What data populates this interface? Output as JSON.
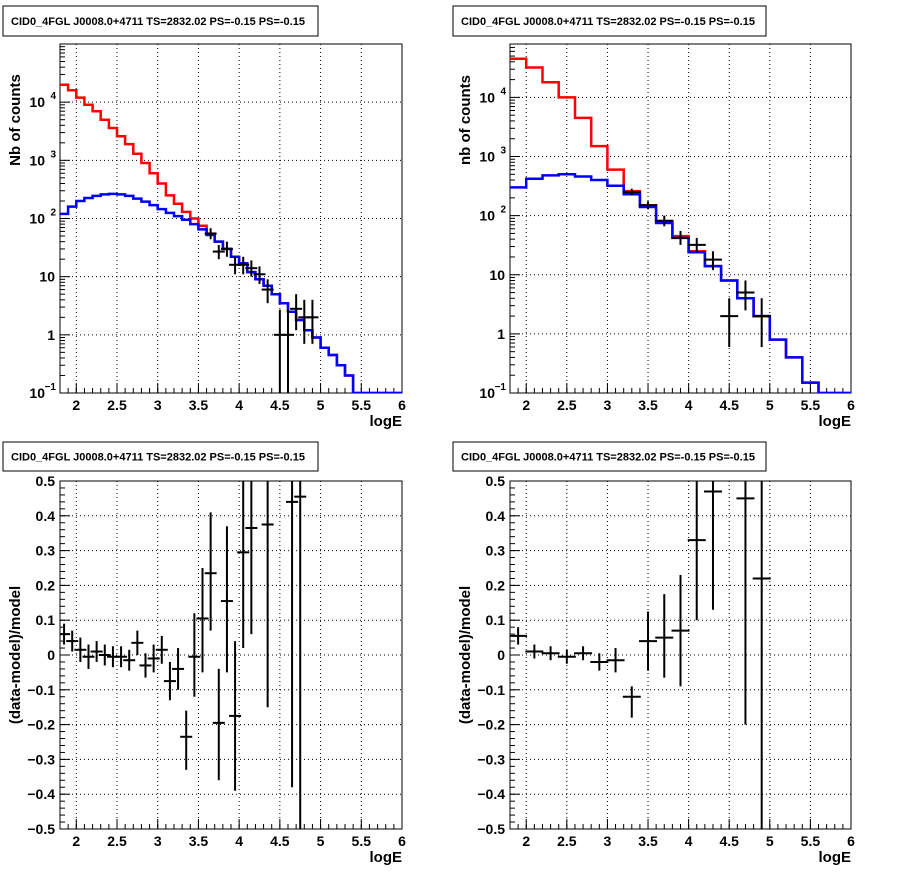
{
  "colors": {
    "model_total": "#ff0000",
    "model_component": "#0000ff",
    "data": "#000000",
    "grid": "#000000"
  },
  "chart_data": [
    {
      "type": "line",
      "title": "CID0_4FGL J0008.0+4711 TS=2832.02 PS=-0.15 PS=-0.15",
      "xlabel": "logE",
      "ylabel": "Nb of counts",
      "xlim": [
        1.8,
        6.0
      ],
      "ylim": [
        0.1,
        100000
      ],
      "yscale": "log",
      "grid": true,
      "x_ticks": [
        "2",
        "2.5",
        "3",
        "3.5",
        "4",
        "4.5",
        "5",
        "5.5",
        "6"
      ],
      "y_ticks": [
        {
          "value": 0.1,
          "label": "10",
          "sup": "−1"
        },
        {
          "value": 1,
          "label": "1",
          "sup": ""
        },
        {
          "value": 10,
          "label": "10",
          "sup": ""
        },
        {
          "value": 100,
          "label": "10",
          "sup": "2"
        },
        {
          "value": 1000,
          "label": "10",
          "sup": "3"
        },
        {
          "value": 10000,
          "label": "10",
          "sup": "4"
        }
      ],
      "bin_edges": [
        1.8,
        1.9,
        2.0,
        2.1,
        2.2,
        2.3,
        2.4,
        2.5,
        2.6,
        2.7,
        2.8,
        2.9,
        3.0,
        3.1,
        3.2,
        3.3,
        3.4,
        3.5,
        3.6,
        3.7,
        3.8,
        3.9,
        4.0,
        4.1,
        4.2,
        4.3,
        4.4,
        4.5,
        4.6,
        4.7,
        4.8,
        4.9,
        5.0,
        5.1,
        5.2,
        5.3,
        5.4,
        5.5,
        5.6,
        5.7,
        5.8,
        5.9,
        6.0
      ],
      "series": [
        {
          "name": "",
          "kind": "step",
          "color": "#ff0000",
          "values": [
            20000,
            16000,
            12000,
            9000,
            7000,
            5000,
            3600,
            2600,
            1900,
            1300,
            900,
            600,
            400,
            250,
            180,
            130,
            100,
            75,
            55,
            40,
            30,
            22,
            17,
            12,
            9,
            7,
            5,
            3.5,
            2.5,
            1.8,
            1.2,
            0.9,
            0.6,
            0.45,
            0.3,
            0.2,
            0.1,
            0.1,
            0.1,
            0.1,
            0.1,
            0.1
          ]
        },
        {
          "name": "",
          "kind": "step",
          "color": "#0000ff",
          "values": [
            120,
            160,
            200,
            225,
            245,
            260,
            265,
            260,
            245,
            220,
            195,
            170,
            145,
            125,
            110,
            95,
            80,
            65,
            52,
            40,
            30,
            22,
            17,
            12,
            9,
            7,
            5,
            3.5,
            2.5,
            1.8,
            1.2,
            0.9,
            0.6,
            0.45,
            0.3,
            0.2,
            0.1,
            0.1,
            0.1,
            0.1,
            0.1,
            0.1
          ]
        },
        {
          "name": "",
          "kind": "points",
          "color": "#000000",
          "points": [
            {
              "x": 3.65,
              "y": 55,
              "lo": 44,
              "hi": 68
            },
            {
              "x": 3.75,
              "y": 27,
              "lo": 20,
              "hi": 35
            },
            {
              "x": 3.85,
              "y": 30,
              "lo": 22,
              "hi": 40
            },
            {
              "x": 3.95,
              "y": 16,
              "lo": 11,
              "hi": 22
            },
            {
              "x": 4.05,
              "y": 16,
              "lo": 11,
              "hi": 22
            },
            {
              "x": 4.15,
              "y": 14,
              "lo": 10,
              "hi": 19
            },
            {
              "x": 4.25,
              "y": 11,
              "lo": 7.5,
              "hi": 15
            },
            {
              "x": 4.35,
              "y": 6,
              "lo": 3.5,
              "hi": 9
            },
            {
              "x": 4.5,
              "y": 1,
              "lo": 0.1,
              "hi": 2.7
            },
            {
              "x": 4.6,
              "y": 1,
              "lo": 0.1,
              "hi": 2.7
            },
            {
              "x": 4.7,
              "y": 2.8,
              "lo": 1.2,
              "hi": 5
            },
            {
              "x": 4.8,
              "y": 2,
              "lo": 0.7,
              "hi": 4
            },
            {
              "x": 4.9,
              "y": 2,
              "lo": 0.7,
              "hi": 4
            }
          ]
        }
      ]
    },
    {
      "type": "line",
      "title": "CID0_4FGL J0008.0+4711 TS=2832.02 PS=-0.15 PS=-0.15",
      "xlabel": "logE",
      "ylabel": "nb of counts",
      "xlim": [
        1.8,
        6.0
      ],
      "ylim": [
        0.1,
        80000
      ],
      "yscale": "log",
      "grid": true,
      "x_ticks": [
        "2",
        "2.5",
        "3",
        "3.5",
        "4",
        "4.5",
        "5",
        "5.5",
        "6"
      ],
      "y_ticks": [
        {
          "value": 0.1,
          "label": "10",
          "sup": "−1"
        },
        {
          "value": 1,
          "label": "1",
          "sup": ""
        },
        {
          "value": 10,
          "label": "10",
          "sup": ""
        },
        {
          "value": 100,
          "label": "10",
          "sup": "2"
        },
        {
          "value": 1000,
          "label": "10",
          "sup": "3"
        },
        {
          "value": 10000,
          "label": "10",
          "sup": "4"
        }
      ],
      "bin_edges": [
        1.8,
        2.0,
        2.2,
        2.4,
        2.6,
        2.8,
        3.0,
        3.2,
        3.4,
        3.6,
        3.8,
        4.0,
        4.2,
        4.4,
        4.6,
        4.8,
        5.0,
        5.2,
        5.4,
        5.6,
        5.8,
        6.0
      ],
      "series": [
        {
          "name": "",
          "kind": "step",
          "color": "#ff0000",
          "values": [
            45000,
            32000,
            18000,
            10000,
            4500,
            1500,
            600,
            260,
            150,
            80,
            45,
            25,
            14,
            8,
            4,
            2,
            0.8,
            0.4,
            0.15,
            0.1,
            0.1
          ]
        },
        {
          "name": "",
          "kind": "step",
          "color": "#0000ff",
          "values": [
            300,
            420,
            480,
            500,
            460,
            400,
            320,
            230,
            140,
            75,
            42,
            24,
            14,
            8,
            4,
            2,
            0.8,
            0.4,
            0.15,
            0.1,
            0.1
          ]
        },
        {
          "name": "",
          "kind": "points",
          "color": "#000000",
          "points": [
            {
              "x": 3.3,
              "y": 250,
              "lo": 220,
              "hi": 285
            },
            {
              "x": 3.5,
              "y": 150,
              "lo": 128,
              "hi": 175
            },
            {
              "x": 3.7,
              "y": 82,
              "lo": 66,
              "hi": 100
            },
            {
              "x": 3.9,
              "y": 42,
              "lo": 32,
              "hi": 55
            },
            {
              "x": 4.1,
              "y": 32,
              "lo": 24,
              "hi": 42
            },
            {
              "x": 4.3,
              "y": 18,
              "lo": 12,
              "hi": 25
            },
            {
              "x": 4.5,
              "y": 2,
              "lo": 0.6,
              "hi": 4
            },
            {
              "x": 4.7,
              "y": 5,
              "lo": 2.5,
              "hi": 8
            },
            {
              "x": 4.9,
              "y": 2,
              "lo": 0.6,
              "hi": 4
            }
          ]
        }
      ]
    },
    {
      "type": "scatter",
      "title": "CID0_4FGL J0008.0+4711 TS=2832.02 PS=-0.15 PS=-0.15",
      "xlabel": "logE",
      "ylabel": "(data-model)/model",
      "xlim": [
        1.8,
        6.0
      ],
      "ylim": [
        -0.5,
        0.5
      ],
      "yscale": "linear",
      "grid": true,
      "x_ticks": [
        "2",
        "2.5",
        "3",
        "3.5",
        "4",
        "4.5",
        "5",
        "5.5",
        "6"
      ],
      "y_ticks": [
        {
          "value": -0.5,
          "label": "−0.5",
          "sup": ""
        },
        {
          "value": -0.4,
          "label": "−0.4",
          "sup": ""
        },
        {
          "value": -0.3,
          "label": "−0.3",
          "sup": ""
        },
        {
          "value": -0.2,
          "label": "−0.2",
          "sup": ""
        },
        {
          "value": -0.1,
          "label": "−0.1",
          "sup": ""
        },
        {
          "value": 0,
          "label": "0",
          "sup": ""
        },
        {
          "value": 0.1,
          "label": "0.1",
          "sup": ""
        },
        {
          "value": 0.2,
          "label": "0.2",
          "sup": ""
        },
        {
          "value": 0.3,
          "label": "0.3",
          "sup": ""
        },
        {
          "value": 0.4,
          "label": "0.4",
          "sup": ""
        },
        {
          "value": 0.5,
          "label": "0.5",
          "sup": ""
        }
      ],
      "series": [
        {
          "name": "",
          "kind": "points",
          "color": "#000000",
          "points": [
            {
              "x": 1.85,
              "y": 0.06,
              "lo": 0.03,
              "hi": 0.09
            },
            {
              "x": 1.95,
              "y": 0.04,
              "lo": 0.01,
              "hi": 0.07
            },
            {
              "x": 2.05,
              "y": 0.015,
              "lo": -0.02,
              "hi": 0.05
            },
            {
              "x": 2.15,
              "y": -0.005,
              "lo": -0.04,
              "hi": 0.03
            },
            {
              "x": 2.25,
              "y": 0.01,
              "lo": -0.02,
              "hi": 0.04
            },
            {
              "x": 2.35,
              "y": 0.0,
              "lo": -0.03,
              "hi": 0.03
            },
            {
              "x": 2.45,
              "y": -0.005,
              "lo": -0.035,
              "hi": 0.025
            },
            {
              "x": 2.55,
              "y": -0.005,
              "lo": -0.035,
              "hi": 0.025
            },
            {
              "x": 2.65,
              "y": -0.015,
              "lo": -0.045,
              "hi": 0.015
            },
            {
              "x": 2.75,
              "y": 0.035,
              "lo": 0.0,
              "hi": 0.07
            },
            {
              "x": 2.85,
              "y": -0.03,
              "lo": -0.065,
              "hi": 0.005
            },
            {
              "x": 2.95,
              "y": -0.01,
              "lo": -0.05,
              "hi": 0.03
            },
            {
              "x": 3.05,
              "y": 0.015,
              "lo": -0.025,
              "hi": 0.055
            },
            {
              "x": 3.15,
              "y": -0.075,
              "lo": -0.13,
              "hi": -0.02
            },
            {
              "x": 3.25,
              "y": -0.04,
              "lo": -0.1,
              "hi": 0.02
            },
            {
              "x": 3.35,
              "y": -0.235,
              "lo": -0.33,
              "hi": -0.16
            },
            {
              "x": 3.45,
              "y": -0.005,
              "lo": -0.12,
              "hi": 0.12
            },
            {
              "x": 3.55,
              "y": 0.105,
              "lo": -0.05,
              "hi": 0.25
            },
            {
              "x": 3.65,
              "y": 0.235,
              "lo": 0.07,
              "hi": 0.41
            },
            {
              "x": 3.75,
              "y": -0.195,
              "lo": -0.36,
              "hi": -0.04
            },
            {
              "x": 3.85,
              "y": 0.155,
              "lo": -0.05,
              "hi": 0.37
            },
            {
              "x": 3.95,
              "y": -0.175,
              "lo": -0.39,
              "hi": 0.04
            },
            {
              "x": 4.05,
              "y": 0.295,
              "lo": 0.02,
              "hi": 0.57
            },
            {
              "x": 4.15,
              "y": 0.365,
              "lo": 0.06,
              "hi": 0.67
            },
            {
              "x": 4.35,
              "y": 0.375,
              "lo": -0.15,
              "hi": 0.9
            },
            {
              "x": 4.65,
              "y": 0.44,
              "lo": -0.38,
              "hi": 1.3
            },
            {
              "x": 4.75,
              "y": 0.455,
              "lo": -0.55,
              "hi": 1.4
            }
          ]
        }
      ]
    },
    {
      "type": "scatter",
      "title": "CID0_4FGL J0008.0+4711 TS=2832.02 PS=-0.15 PS=-0.15",
      "xlabel": "logE",
      "ylabel": "(data-model)/model",
      "xlim": [
        1.8,
        6.0
      ],
      "ylim": [
        -0.5,
        0.5
      ],
      "yscale": "linear",
      "grid": true,
      "x_ticks": [
        "2",
        "2.5",
        "3",
        "3.5",
        "4",
        "4.5",
        "5",
        "5.5",
        "6"
      ],
      "y_ticks": [
        {
          "value": -0.5,
          "label": "−0.5",
          "sup": ""
        },
        {
          "value": -0.4,
          "label": "−0.4",
          "sup": ""
        },
        {
          "value": -0.3,
          "label": "−0.3",
          "sup": ""
        },
        {
          "value": -0.2,
          "label": "−0.2",
          "sup": ""
        },
        {
          "value": -0.1,
          "label": "−0.1",
          "sup": ""
        },
        {
          "value": 0,
          "label": "0",
          "sup": ""
        },
        {
          "value": 0.1,
          "label": "0.1",
          "sup": ""
        },
        {
          "value": 0.2,
          "label": "0.2",
          "sup": ""
        },
        {
          "value": 0.3,
          "label": "0.3",
          "sup": ""
        },
        {
          "value": 0.4,
          "label": "0.4",
          "sup": ""
        },
        {
          "value": 0.5,
          "label": "0.5",
          "sup": ""
        }
      ],
      "series": [
        {
          "name": "",
          "kind": "points",
          "color": "#000000",
          "points": [
            {
              "x": 1.9,
              "y": 0.055,
              "lo": 0.03,
              "hi": 0.08
            },
            {
              "x": 2.1,
              "y": 0.01,
              "lo": -0.01,
              "hi": 0.03
            },
            {
              "x": 2.3,
              "y": 0.005,
              "lo": -0.015,
              "hi": 0.025
            },
            {
              "x": 2.5,
              "y": -0.005,
              "lo": -0.025,
              "hi": 0.015
            },
            {
              "x": 2.7,
              "y": 0.005,
              "lo": -0.015,
              "hi": 0.025
            },
            {
              "x": 2.9,
              "y": -0.02,
              "lo": -0.045,
              "hi": 0.005
            },
            {
              "x": 3.1,
              "y": -0.015,
              "lo": -0.05,
              "hi": 0.02
            },
            {
              "x": 3.3,
              "y": -0.12,
              "lo": -0.18,
              "hi": -0.09
            },
            {
              "x": 3.5,
              "y": 0.04,
              "lo": -0.045,
              "hi": 0.125
            },
            {
              "x": 3.7,
              "y": 0.05,
              "lo": -0.065,
              "hi": 0.175
            },
            {
              "x": 3.9,
              "y": 0.07,
              "lo": -0.09,
              "hi": 0.23
            },
            {
              "x": 4.1,
              "y": 0.33,
              "lo": 0.1,
              "hi": 0.56
            },
            {
              "x": 4.3,
              "y": 0.47,
              "lo": 0.13,
              "hi": 0.81
            },
            {
              "x": 4.7,
              "y": 0.45,
              "lo": -0.2,
              "hi": 1.1
            },
            {
              "x": 4.9,
              "y": 0.22,
              "lo": -0.6,
              "hi": 1.04
            }
          ]
        }
      ]
    }
  ]
}
